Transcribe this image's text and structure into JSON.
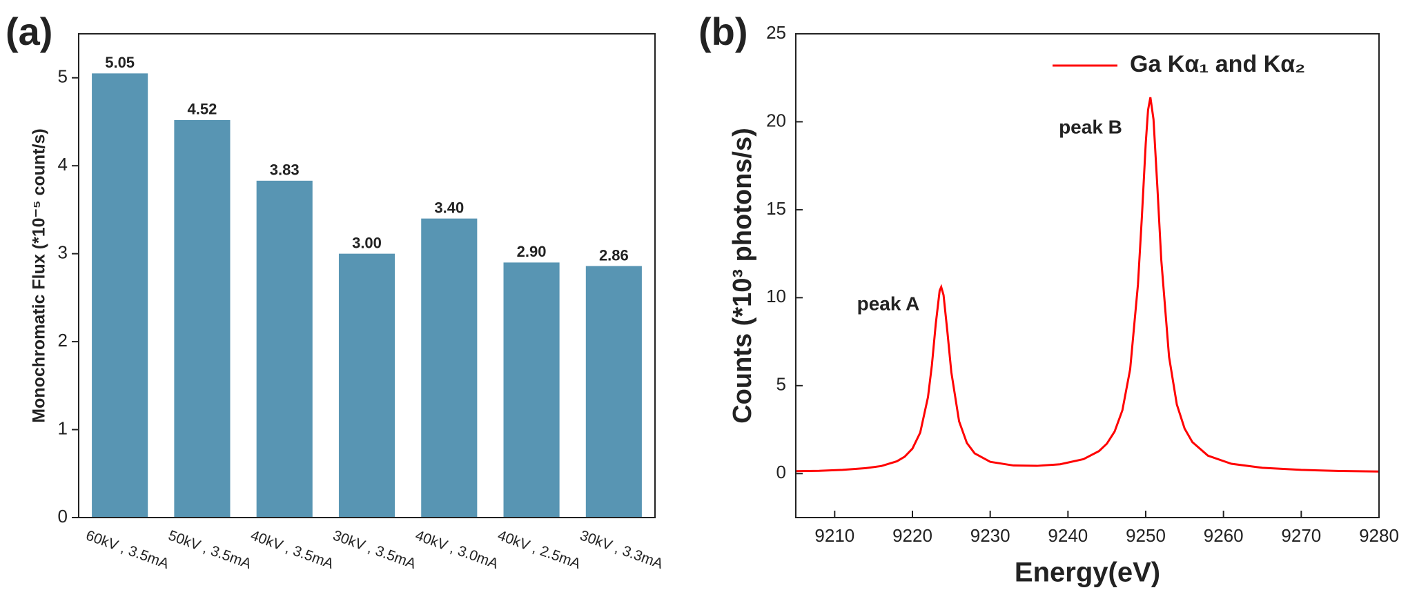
{
  "chart_data": [
    {
      "type": "bar",
      "panel_label": "(a)",
      "y_label": "Monochromatic Flux (*10⁻⁵ count/s)",
      "categories": [
        "60kV , 3.5mA",
        "50kV , 3.5mA",
        "40kV , 3.5mA",
        "30kV , 3.5mA",
        "40kV , 3.0mA",
        "40kV , 2.5mA",
        "30kV , 3.3mA"
      ],
      "values": [
        5.05,
        4.52,
        3.83,
        3.0,
        3.4,
        2.9,
        2.86
      ],
      "value_labels": [
        "5.05",
        "4.52",
        "3.83",
        "3.00",
        "3.40",
        "2.90",
        "2.86"
      ],
      "color": "#5895b3",
      "ylim": [
        0,
        5.5
      ],
      "yticks": [
        0,
        1,
        2,
        3,
        4,
        5
      ]
    },
    {
      "type": "line",
      "panel_label": "(b)",
      "x_label": "Energy(eV)",
      "y_label": "Counts (*10³ photons/s)",
      "x": [
        9205,
        9208,
        9211,
        9214,
        9216,
        9218,
        9219,
        9220,
        9221,
        9222,
        9222.5,
        9223,
        9223.5,
        9223.7,
        9224,
        9224.5,
        9225,
        9226,
        9227,
        9228,
        9230,
        9233,
        9236,
        9239,
        9242,
        9244,
        9245,
        9246,
        9247,
        9248,
        9249,
        9249.5,
        9250,
        9250.3,
        9250.6,
        9251,
        9251.5,
        9252,
        9253,
        9254,
        9255,
        9256,
        9258,
        9261,
        9265,
        9270,
        9275,
        9280
      ],
      "series": [
        {
          "name": "Ga Kα₁ and Kα₂",
          "color": "#ff0000",
          "values": [
            0.14,
            0.16,
            0.21,
            0.31,
            0.43,
            0.7,
            0.96,
            1.42,
            2.33,
            4.35,
            6.16,
            8.51,
            10.4,
            10.61,
            10.15,
            8.04,
            5.77,
            2.97,
            1.74,
            1.15,
            0.67,
            0.46,
            0.44,
            0.53,
            0.82,
            1.28,
            1.7,
            2.39,
            3.6,
            5.94,
            10.74,
            14.55,
            18.76,
            20.67,
            21.39,
            20.14,
            16.27,
            12.15,
            6.64,
            3.93,
            2.56,
            1.79,
            1.02,
            0.56,
            0.33,
            0.21,
            0.15,
            0.12
          ]
        }
      ],
      "annotations": [
        "peak A",
        "peak B"
      ],
      "xlim": [
        9205,
        9280
      ],
      "xticks": [
        9210,
        9220,
        9230,
        9240,
        9250,
        9260,
        9270,
        9280
      ],
      "ylim": [
        -2.5,
        25
      ],
      "yticks": [
        0,
        5,
        10,
        15,
        20,
        25
      ]
    }
  ]
}
